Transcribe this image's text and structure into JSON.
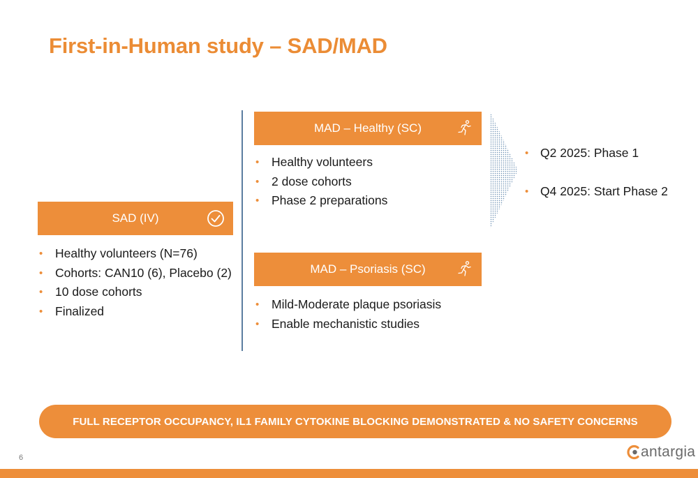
{
  "title": "First-in-Human study – SAD/MAD",
  "sad": {
    "label": "SAD (IV)",
    "icon": "check-circle-icon",
    "bullets": [
      "Healthy volunteers (N=76)",
      "Cohorts: CAN10 (6), Placebo (2)",
      "10 dose cohorts",
      "Finalized"
    ]
  },
  "mad_healthy": {
    "label": "MAD – Healthy (SC)",
    "icon": "running-person-icon",
    "bullets": [
      "Healthy volunteers",
      "2 dose cohorts",
      "Phase 2 preparations"
    ]
  },
  "mad_psoriasis": {
    "label": "MAD – Psoriasis (SC)",
    "icon": "running-person-icon",
    "bullets": [
      "Mild-Moderate plaque psoriasis",
      "Enable mechanistic studies"
    ]
  },
  "timeline": [
    "Q2 2025: Phase 1",
    "Q4 2025: Start Phase 2"
  ],
  "banner": "FULL RECEPTOR OCCUPANCY, IL1 FAMILY CYTOKINE BLOCKING DEMONSTRATED & NO SAFETY CONCERNS",
  "page_number": "6",
  "logo": {
    "text": "antargia",
    "icon": "cantargia-logo-icon"
  },
  "colors": {
    "accent": "#ED8E3A",
    "divider": "#5B7DA0",
    "text": "#1A1A1A"
  }
}
